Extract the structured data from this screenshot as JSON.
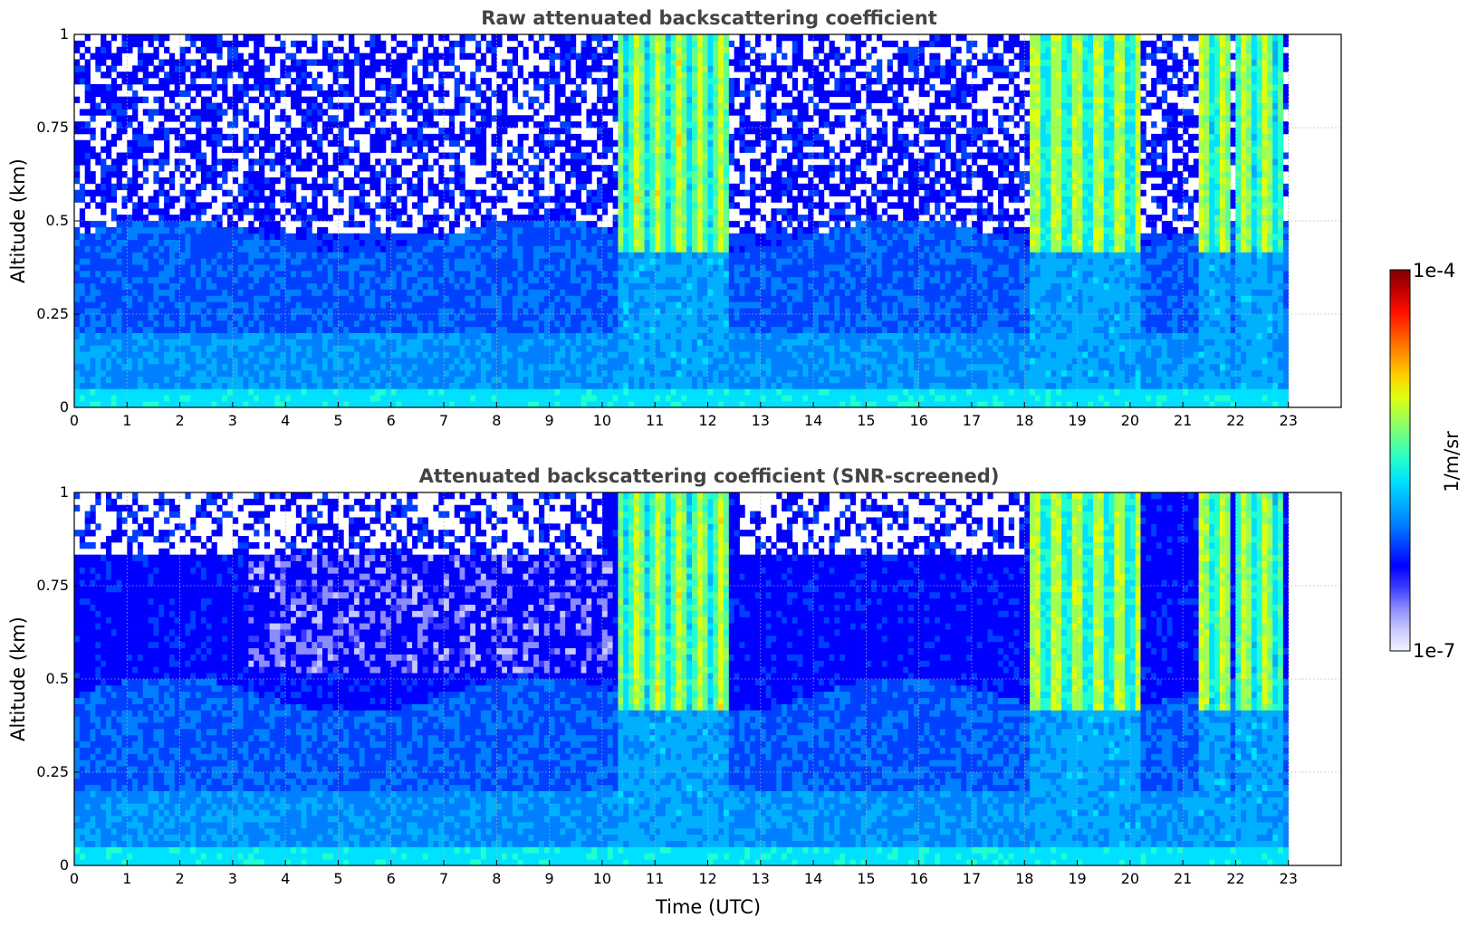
{
  "figure": {
    "colors": {
      "frame": "#000000",
      "grid": "#b0b0b0",
      "title": "#444444",
      "background": "#ffffff"
    }
  },
  "chart_data": [
    {
      "type": "heatmap",
      "title": "Raw attenuated backscattering coefficient",
      "xlabel": "",
      "ylabel": "Altitude (km)",
      "xlim": [
        0,
        24
      ],
      "ylim": [
        0,
        1
      ],
      "xticks": [
        "0",
        "1",
        "2",
        "3",
        "4",
        "5",
        "6",
        "7",
        "8",
        "9",
        "10",
        "11",
        "12",
        "13",
        "14",
        "15",
        "16",
        "17",
        "18",
        "19",
        "20",
        "21",
        "22",
        "23"
      ],
      "yticks": [
        "0",
        "0.25",
        "0.5",
        "0.75",
        "1"
      ],
      "data_end_time": 23,
      "grid": true,
      "screening": "none",
      "notes_data": {
        "cloud_bands_utc": [
          [
            10.3,
            12.3
          ],
          [
            18.1,
            18.5
          ],
          [
            18.5,
            20.2
          ],
          [
            21.3,
            21.8
          ],
          [
            22.0,
            22.9
          ]
        ],
        "boundary_layer_top_km": 0.45
      }
    },
    {
      "type": "heatmap",
      "title": "Attenuated backscattering coefficient (SNR-screened)",
      "xlabel": "Time (UTC)",
      "ylabel": "Altitude (km)",
      "xlim": [
        0,
        24
      ],
      "ylim": [
        0,
        1
      ],
      "xticks": [
        "0",
        "1",
        "2",
        "3",
        "4",
        "5",
        "6",
        "7",
        "8",
        "9",
        "10",
        "11",
        "12",
        "13",
        "14",
        "15",
        "16",
        "17",
        "18",
        "19",
        "20",
        "21",
        "22",
        "23"
      ],
      "yticks": [
        "0",
        "0.25",
        "0.5",
        "0.75",
        "1"
      ],
      "data_end_time": 23,
      "grid": true,
      "screening": "SNR",
      "notes_data": {
        "cloud_bands_utc": [
          [
            10.3,
            12.3
          ],
          [
            18.1,
            18.5
          ],
          [
            18.5,
            20.2
          ],
          [
            21.3,
            21.8
          ],
          [
            22.0,
            22.9
          ]
        ],
        "boundary_layer_top_km": 0.45
      }
    }
  ],
  "colorbar": {
    "label": "1/m/sr",
    "min_label": "1e-7",
    "max_label": "1e-4",
    "min": 1e-07,
    "max": 0.0001,
    "scale": "log",
    "colors": [
      "#f3f3ff",
      "#c8c8ff",
      "#8c8cff",
      "#3c3cff",
      "#0000ff",
      "#0040ff",
      "#0080ff",
      "#00b0ff",
      "#00e0ff",
      "#20ffd0",
      "#60ff90",
      "#a0ff50",
      "#e0ff10",
      "#ffd000",
      "#ff9000",
      "#ff5000",
      "#ff1000",
      "#c00000",
      "#800000"
    ]
  }
}
